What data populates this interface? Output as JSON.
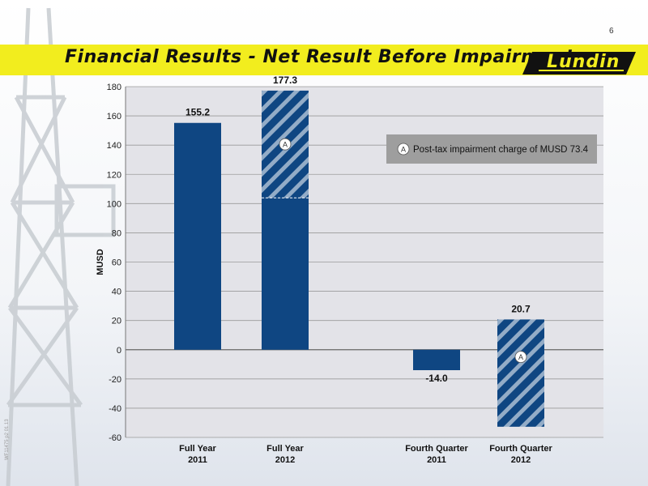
{
  "slide": {
    "number": "6",
    "title": "Financial Results - Net Result Before Impairment",
    "logo_text": "Lundin",
    "ref_code": "WF11475 p2 01.13"
  },
  "colors": {
    "bar": "#0f4682",
    "hatch_stripe": "#ffffff",
    "band": "#f2ed1e",
    "plot_bg": "#e3e3e8",
    "legend_bg": "#9e9e9e"
  },
  "chart_data": {
    "type": "bar",
    "ylabel": "MUSD",
    "ylim": [
      -60,
      180
    ],
    "yticks": [
      -60,
      -40,
      -20,
      0,
      20,
      40,
      60,
      80,
      100,
      120,
      140,
      160,
      180
    ],
    "grid": true,
    "categories": [
      [
        "Full Year",
        "2011"
      ],
      [
        "Full Year",
        "2012"
      ],
      [
        "Fourth Quarter",
        "2011"
      ],
      [
        "Fourth Quarter",
        "2012"
      ]
    ],
    "values": [
      155.2,
      177.3,
      -14.0,
      20.7
    ],
    "value_labels": [
      "155.2",
      "177.3",
      "-14.0",
      "20.7"
    ],
    "segments": [
      [
        {
          "from": 0,
          "to": 155.2,
          "style": "solid"
        }
      ],
      [
        {
          "from": 0,
          "to": 103.9,
          "style": "solid"
        },
        {
          "from": 103.9,
          "to": 177.3,
          "style": "hatched",
          "marker": "A"
        }
      ],
      [
        {
          "from": -14.0,
          "to": 0,
          "style": "solid"
        }
      ],
      [
        {
          "from": -52.7,
          "to": 20.7,
          "style": "hatched",
          "marker": "A"
        }
      ]
    ],
    "legend": {
      "marker": "A",
      "text": "Post-tax impairment charge of MUSD 73.4",
      "position": "top-right"
    }
  }
}
